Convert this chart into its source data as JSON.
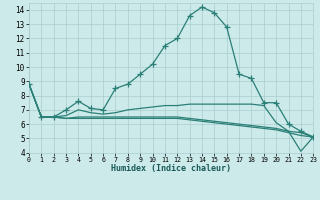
{
  "xlabel": "Humidex (Indice chaleur)",
  "x": [
    0,
    1,
    2,
    3,
    4,
    5,
    6,
    7,
    8,
    9,
    10,
    11,
    12,
    13,
    14,
    15,
    16,
    17,
    18,
    19,
    20,
    21,
    22,
    23
  ],
  "line1": [
    8.8,
    6.5,
    6.5,
    7.0,
    7.6,
    7.1,
    7.0,
    8.5,
    8.8,
    9.5,
    10.2,
    11.5,
    12.0,
    13.6,
    14.2,
    13.8,
    12.8,
    9.5,
    9.2,
    7.5,
    7.5,
    6.0,
    5.5,
    5.1
  ],
  "line2": [
    8.8,
    6.5,
    6.5,
    6.6,
    7.0,
    6.8,
    6.7,
    6.8,
    7.0,
    7.1,
    7.2,
    7.3,
    7.3,
    7.4,
    7.4,
    7.4,
    7.4,
    7.4,
    7.4,
    7.3,
    6.1,
    5.5,
    5.4,
    5.1
  ],
  "line3": [
    8.8,
    6.5,
    6.5,
    6.4,
    6.5,
    6.5,
    6.5,
    6.5,
    6.5,
    6.5,
    6.5,
    6.5,
    6.5,
    6.4,
    6.3,
    6.2,
    6.1,
    6.0,
    5.9,
    5.8,
    5.7,
    5.5,
    4.1,
    5.1
  ],
  "line4": [
    8.8,
    6.5,
    6.5,
    6.4,
    6.4,
    6.4,
    6.4,
    6.4,
    6.4,
    6.4,
    6.4,
    6.4,
    6.4,
    6.3,
    6.2,
    6.1,
    6.0,
    5.9,
    5.8,
    5.7,
    5.6,
    5.4,
    5.2,
    5.1
  ],
  "line_color": "#2a7f77",
  "bg_color": "#cdeaea",
  "grid_color": "#aacccc",
  "ylim": [
    4,
    14.5
  ],
  "xlim": [
    0,
    23
  ],
  "yticks": [
    4,
    5,
    6,
    7,
    8,
    9,
    10,
    11,
    12,
    13,
    14
  ],
  "xticks": [
    0,
    1,
    2,
    3,
    4,
    5,
    6,
    7,
    8,
    9,
    10,
    11,
    12,
    13,
    14,
    15,
    16,
    17,
    18,
    19,
    20,
    21,
    22,
    23
  ],
  "line_width": 0.9,
  "marker_size": 3.5
}
